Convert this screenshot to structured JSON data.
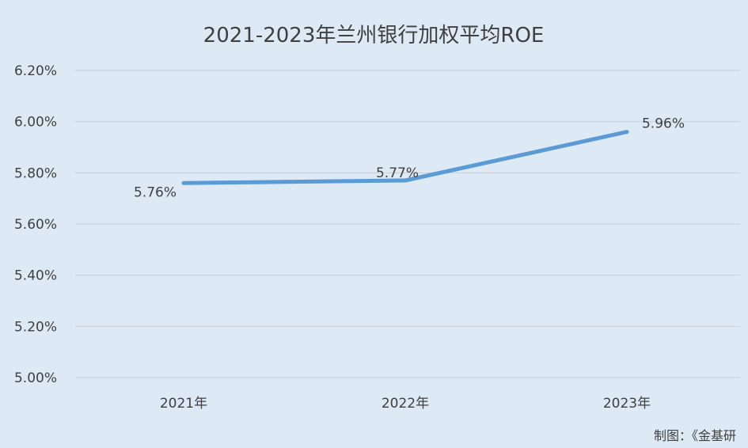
{
  "chart_data": {
    "type": "line",
    "title": "2021-2023年兰州银行加权平均ROE",
    "categories": [
      "2021年",
      "2022年",
      "2023年"
    ],
    "series": [
      {
        "values": [
          5.76,
          5.77,
          5.96
        ],
        "labels": [
          "5.76%",
          "5.77%",
          "5.96%"
        ],
        "color": "#5b9bd5"
      }
    ],
    "y_ticks": [
      "5.00%",
      "5.20%",
      "5.40%",
      "5.60%",
      "5.80%",
      "6.00%",
      "6.20%"
    ],
    "ylim": [
      5.0,
      6.2
    ],
    "grid": true,
    "legend": "none"
  },
  "credit": "制图：《金基研"
}
